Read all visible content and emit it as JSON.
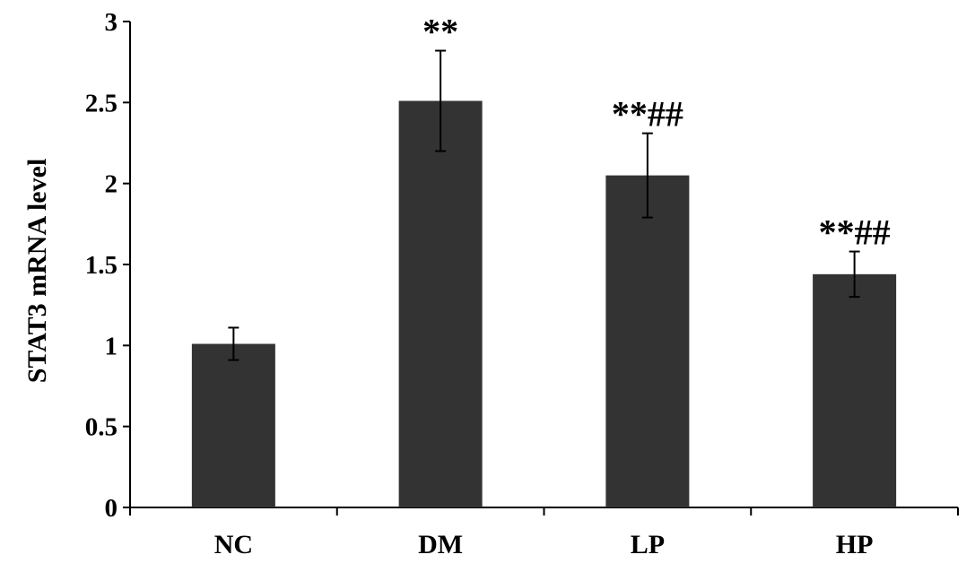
{
  "chart_data": {
    "type": "bar",
    "title": "",
    "xlabel": "",
    "ylabel": "STAT3 mRNA level",
    "ylim": [
      0,
      3
    ],
    "yticks": [
      "0",
      "0.5",
      "1",
      "1.5",
      "2",
      "2.5",
      "3"
    ],
    "categories": [
      "NC",
      "DM",
      "LP",
      "HP"
    ],
    "series": [
      {
        "values": [
          1.01,
          2.51,
          2.05,
          1.44
        ],
        "error": [
          0.1,
          0.31,
          0.26,
          0.14
        ],
        "annotations": [
          "",
          "**",
          "**##",
          "**##"
        ]
      }
    ],
    "grid": false,
    "legend": "none",
    "bar_color": "#333333"
  }
}
